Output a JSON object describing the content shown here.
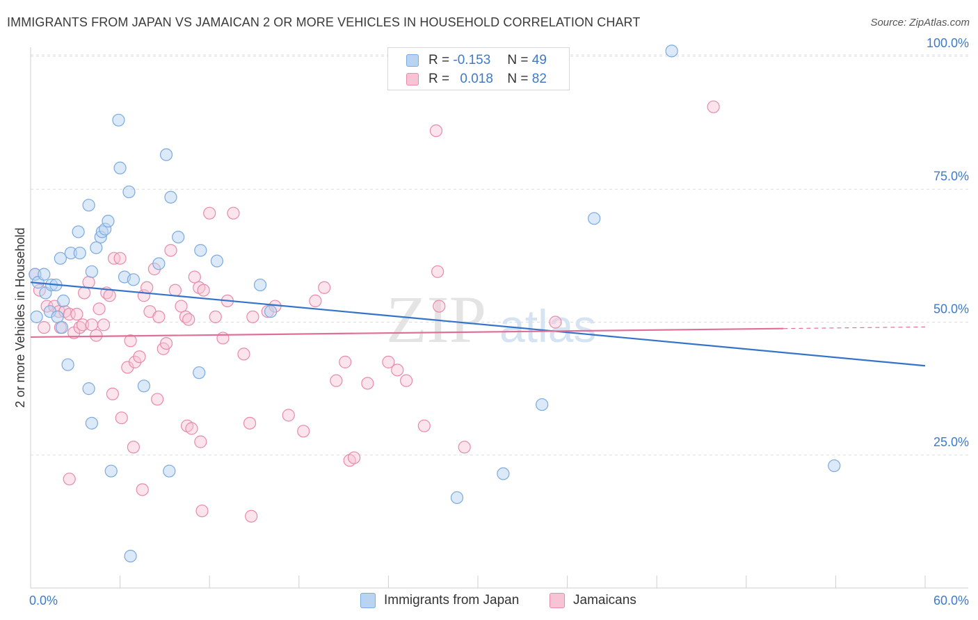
{
  "header": {
    "title": "IMMIGRANTS FROM JAPAN VS JAMAICAN 2 OR MORE VEHICLES IN HOUSEHOLD CORRELATION CHART",
    "source": "Source: ZipAtlas.com"
  },
  "watermark": {
    "zip": "ZIP",
    "atlas": "atlas"
  },
  "legend": {
    "r_label": "R =",
    "n_label": "N =",
    "series": [
      {
        "name": "Immigrants from Japan",
        "r": "-0.153",
        "n": "49",
        "color": "#7aaae0",
        "fill": "#b9d3f2"
      },
      {
        "name": "Jamaicans",
        "r": "0.018",
        "n": "82",
        "color": "#e88aa8",
        "fill": "#f7c4d5"
      }
    ]
  },
  "chart_data": {
    "type": "scatter",
    "title": "IMMIGRANTS FROM JAPAN VS JAMAICAN 2 OR MORE VEHICLES IN HOUSEHOLD CORRELATION CHART",
    "xlabel": "",
    "ylabel": "2 or more Vehicles in Household",
    "xlim": [
      0,
      60
    ],
    "ylim": [
      0,
      100
    ],
    "x_ticks": [
      "0.0%",
      "60.0%"
    ],
    "y_ticks": [
      "25.0%",
      "50.0%",
      "75.0%",
      "100.0%"
    ],
    "y_tick_values": [
      25,
      50,
      75,
      100
    ],
    "grid": true,
    "series": [
      {
        "name": "Immigrants from Japan",
        "color": "#7aaae0",
        "trend": {
          "x": [
            0,
            60
          ],
          "y": [
            57.5,
            41.8
          ]
        },
        "points": [
          [
            0.3,
            59
          ],
          [
            0.5,
            57.5
          ],
          [
            0.4,
            51
          ],
          [
            0.9,
            59
          ],
          [
            1.0,
            55.5
          ],
          [
            1.4,
            57
          ],
          [
            1.7,
            57
          ],
          [
            1.3,
            52
          ],
          [
            1.8,
            51
          ],
          [
            2.2,
            54
          ],
          [
            2.1,
            49
          ],
          [
            2.0,
            62
          ],
          [
            2.7,
            63
          ],
          [
            2.5,
            42
          ],
          [
            3.2,
            67
          ],
          [
            3.3,
            63
          ],
          [
            3.9,
            72
          ],
          [
            4.1,
            59.5
          ],
          [
            4.4,
            64
          ],
          [
            4.1,
            31
          ],
          [
            3.9,
            37.5
          ],
          [
            4.7,
            66
          ],
          [
            4.8,
            67
          ],
          [
            5.0,
            67.5
          ],
          [
            5.2,
            69
          ],
          [
            5.9,
            88
          ],
          [
            6.0,
            79
          ],
          [
            6.3,
            58.5
          ],
          [
            6.9,
            58
          ],
          [
            6.6,
            74.5
          ],
          [
            7.6,
            38
          ],
          [
            8.6,
            61
          ],
          [
            9.1,
            81.5
          ],
          [
            9.4,
            73.5
          ],
          [
            9.9,
            66
          ],
          [
            9.3,
            22
          ],
          [
            11.4,
            63.5
          ],
          [
            11.3,
            40.5
          ],
          [
            12.5,
            61.5
          ],
          [
            15.4,
            57
          ],
          [
            16.1,
            52
          ],
          [
            5.4,
            22
          ],
          [
            6.7,
            6
          ],
          [
            28.6,
            17
          ],
          [
            31.7,
            21.5
          ],
          [
            34.3,
            34.5
          ],
          [
            37.8,
            69.5
          ],
          [
            43.0,
            101
          ],
          [
            53.9,
            23
          ]
        ]
      },
      {
        "name": "Jamaicans",
        "color": "#e88aa8",
        "trend": {
          "x": [
            0,
            50.5
          ],
          "y": [
            47.2,
            48.8
          ],
          "dashed_to": [
            60,
            49.1
          ]
        },
        "points": [
          [
            0.3,
            59
          ],
          [
            0.6,
            56
          ],
          [
            0.9,
            49
          ],
          [
            1.1,
            53
          ],
          [
            1.6,
            53
          ],
          [
            1.9,
            52
          ],
          [
            2.0,
            49
          ],
          [
            2.3,
            52
          ],
          [
            2.6,
            51.5
          ],
          [
            2.9,
            48
          ],
          [
            3.1,
            51.5
          ],
          [
            3.3,
            49
          ],
          [
            3.5,
            49.5
          ],
          [
            3.6,
            55.5
          ],
          [
            3.9,
            57.5
          ],
          [
            4.1,
            49.5
          ],
          [
            4.4,
            47.5
          ],
          [
            4.6,
            52.5
          ],
          [
            4.9,
            49.5
          ],
          [
            5.1,
            55.5
          ],
          [
            5.3,
            55
          ],
          [
            5.6,
            62
          ],
          [
            6.0,
            62
          ],
          [
            6.5,
            41.5
          ],
          [
            6.7,
            46.5
          ],
          [
            7.0,
            42.5
          ],
          [
            7.3,
            43.5
          ],
          [
            7.6,
            55
          ],
          [
            7.8,
            56.5
          ],
          [
            8.0,
            52
          ],
          [
            8.3,
            60
          ],
          [
            8.6,
            51
          ],
          [
            8.9,
            45
          ],
          [
            9.1,
            46
          ],
          [
            9.4,
            63.5
          ],
          [
            9.7,
            56
          ],
          [
            10.1,
            53
          ],
          [
            10.4,
            51
          ],
          [
            10.6,
            50.5
          ],
          [
            11.0,
            58.5
          ],
          [
            11.3,
            56.5
          ],
          [
            11.6,
            56
          ],
          [
            12.0,
            70.5
          ],
          [
            12.4,
            51
          ],
          [
            12.9,
            47
          ],
          [
            13.2,
            54
          ],
          [
            13.6,
            70.5
          ],
          [
            14.3,
            44
          ],
          [
            14.9,
            51
          ],
          [
            15.9,
            52
          ],
          [
            16.4,
            53
          ],
          [
            17.3,
            32.5
          ],
          [
            18.3,
            29.5
          ],
          [
            19.1,
            54
          ],
          [
            19.7,
            56.5
          ],
          [
            20.5,
            39
          ],
          [
            21.1,
            42.5
          ],
          [
            21.4,
            24
          ],
          [
            21.7,
            24.5
          ],
          [
            22.6,
            38.5
          ],
          [
            24.0,
            42.5
          ],
          [
            24.6,
            41
          ],
          [
            25.2,
            39
          ],
          [
            26.4,
            30.5
          ],
          [
            27.3,
            59.5
          ],
          [
            27.4,
            53
          ],
          [
            27.2,
            86
          ],
          [
            29.1,
            26.5
          ],
          [
            35.2,
            50
          ],
          [
            45.8,
            90.5
          ],
          [
            6.1,
            32
          ],
          [
            6.9,
            26.5
          ],
          [
            5.5,
            36.5
          ],
          [
            2.6,
            20.5
          ],
          [
            7.5,
            18.5
          ],
          [
            8.5,
            35.5
          ],
          [
            10.5,
            30.5
          ],
          [
            10.8,
            30
          ],
          [
            11.4,
            27.5
          ],
          [
            11.5,
            14.5
          ],
          [
            14.8,
            13.5
          ],
          [
            14.7,
            31
          ]
        ]
      }
    ]
  }
}
